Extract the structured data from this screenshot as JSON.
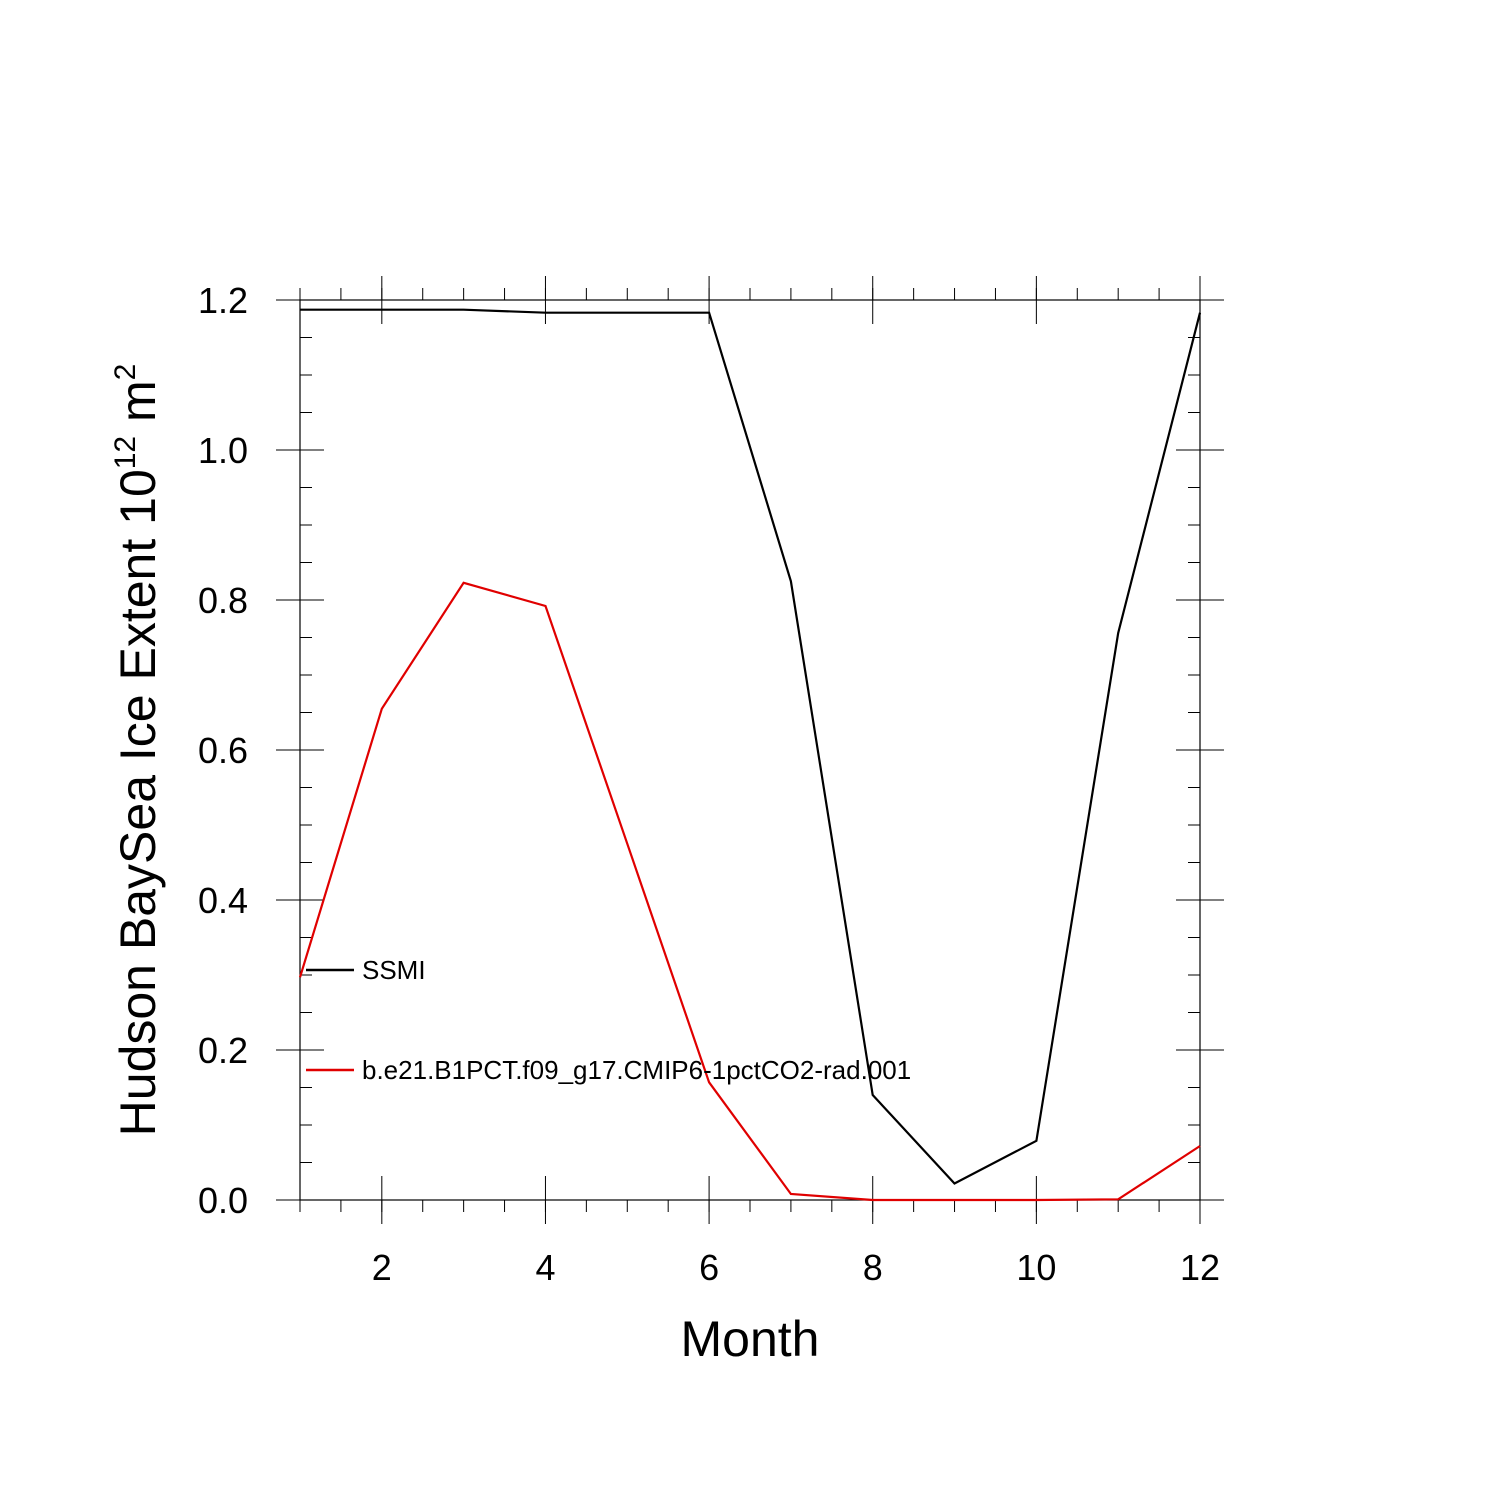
{
  "chart_data": {
    "type": "line",
    "title": "",
    "xlabel": "Month",
    "ylabel": {
      "main": "Hudson BaySea Ice Extent 10",
      "exponent": "12",
      "unit": " m",
      "unit_exponent": "2"
    },
    "xlim": [
      1,
      12
    ],
    "ylim": [
      0,
      1.2
    ],
    "x_ticks": [
      2,
      4,
      6,
      8,
      10,
      12
    ],
    "x_tick_labels": [
      "2",
      "4",
      "6",
      "8",
      "10",
      "12"
    ],
    "y_ticks": [
      0,
      0.2,
      0.4,
      0.6,
      0.8,
      1.0,
      1.2
    ],
    "y_tick_labels": [
      "0.0",
      "0.2",
      "0.4",
      "0.6",
      "0.8",
      "1.0",
      "1.2"
    ],
    "grid": false,
    "legend_placement": "left-middle",
    "x": [
      1,
      2,
      3,
      4,
      5,
      6,
      7,
      8,
      9,
      10,
      11,
      12
    ],
    "series": [
      {
        "name": "SSMI",
        "color": "#000000",
        "values": [
          1.187,
          1.187,
          1.187,
          1.183,
          1.183,
          1.183,
          0.825,
          0.14,
          0.022,
          0.079,
          0.756,
          1.183
        ]
      },
      {
        "name": "b.e21.B1PCT.f09_g17.CMIP6-1pctCO2-rad.001",
        "color": "#e00000",
        "values": [
          0.297,
          0.655,
          0.823,
          0.792,
          0.475,
          0.157,
          0.008,
          0.0,
          0.0,
          0.0,
          0.001,
          0.072
        ]
      }
    ]
  }
}
